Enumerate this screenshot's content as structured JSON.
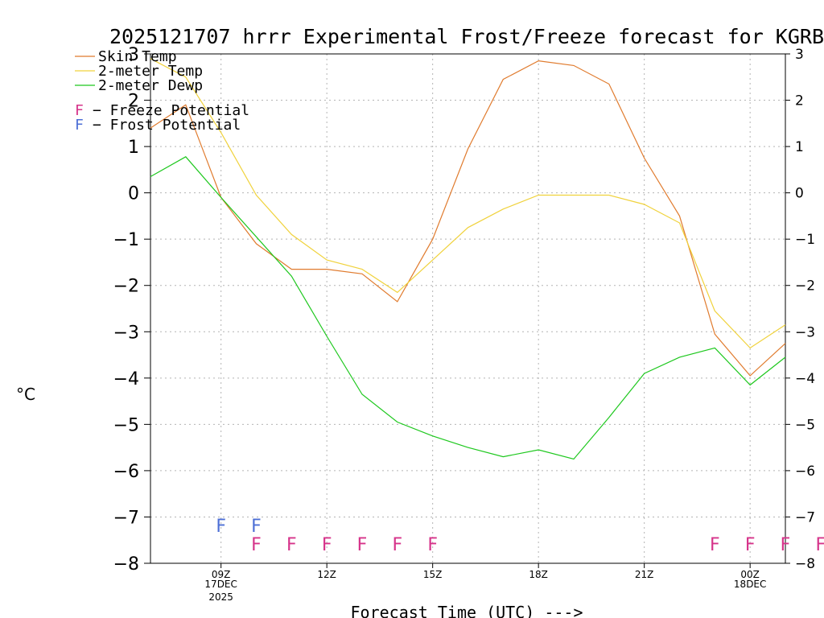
{
  "chart_data": {
    "type": "line",
    "title": "2025121707 hrrr Experimental Frost/Freeze forecast for KGRB",
    "xlabel": "Forecast Time (UTC) --->",
    "ylabel": "°C",
    "ylim": [
      -8,
      3
    ],
    "xlim": [
      7,
      25
    ],
    "yticks": [
      3,
      2,
      1,
      0,
      -1,
      -2,
      -3,
      -4,
      -5,
      -6,
      -7,
      -8
    ],
    "ytick_labels": [
      "3",
      "2",
      "1",
      "0",
      "−1",
      "−2",
      "−3",
      "−4",
      "−5",
      "−6",
      "−7",
      "−8"
    ],
    "xticks": [
      {
        "x": 9,
        "label": "09Z",
        "sub1": "17DEC",
        "sub2": "2025"
      },
      {
        "x": 12,
        "label": "12Z",
        "sub1": "",
        "sub2": ""
      },
      {
        "x": 15,
        "label": "15Z",
        "sub1": "",
        "sub2": ""
      },
      {
        "x": 18,
        "label": "18Z",
        "sub1": "",
        "sub2": ""
      },
      {
        "x": 21,
        "label": "21Z",
        "sub1": "",
        "sub2": ""
      },
      {
        "x": 24,
        "label": "00Z",
        "sub1": "18DEC",
        "sub2": ""
      }
    ],
    "grid": true,
    "x": [
      7,
      8,
      9,
      10,
      11,
      12,
      13,
      14,
      15,
      16,
      17,
      18,
      19,
      20,
      21,
      22,
      23,
      24,
      25
    ],
    "series": [
      {
        "name": "Skin Temp",
        "color": "#e07b2e",
        "values": [
          1.4,
          1.9,
          -0.1,
          -1.1,
          -1.65,
          -1.65,
          -1.75,
          -2.35,
          -1.0,
          0.95,
          2.45,
          2.85,
          2.75,
          2.35,
          0.75,
          -0.5,
          -3.05,
          -3.95,
          -3.25
        ]
      },
      {
        "name": "2-meter Temp",
        "color": "#f0d23c",
        "values": [
          2.9,
          2.5,
          1.3,
          -0.05,
          -0.9,
          -1.45,
          -1.65,
          -2.15,
          -1.45,
          -0.75,
          -0.35,
          -0.05,
          -0.05,
          -0.05,
          -0.25,
          -0.65,
          -2.55,
          -3.35,
          -2.85
        ]
      },
      {
        "name": "2-meter Dewp",
        "color": "#1ec81e",
        "values": [
          0.35,
          0.78,
          -0.1,
          -0.95,
          -1.8,
          -3.1,
          -4.35,
          -4.95,
          -5.25,
          -5.5,
          -5.7,
          -5.55,
          -5.75,
          -4.85,
          -3.9,
          -3.55,
          -3.35,
          -4.15,
          -3.55
        ]
      }
    ],
    "legend": {
      "placement": "top-left",
      "entries": [
        "Skin Temp",
        "2-meter Temp",
        "2-meter Dewp"
      ],
      "markers": [
        {
          "symbol": "F",
          "color": "#d6338a",
          "text": "− Freeze Potential"
        },
        {
          "symbol": "F",
          "color": "#4d6fd6",
          "text": "− Frost Potential"
        }
      ]
    },
    "frost_markers": {
      "symbol": "F",
      "color": "#4d6fd6",
      "y": -7.15,
      "x": [
        9,
        10
      ]
    },
    "freeze_markers": {
      "symbol": "F",
      "color": "#d6338a",
      "y": -7.55,
      "x": [
        10,
        11,
        12,
        13,
        14,
        15,
        23,
        24,
        25,
        26
      ]
    }
  }
}
